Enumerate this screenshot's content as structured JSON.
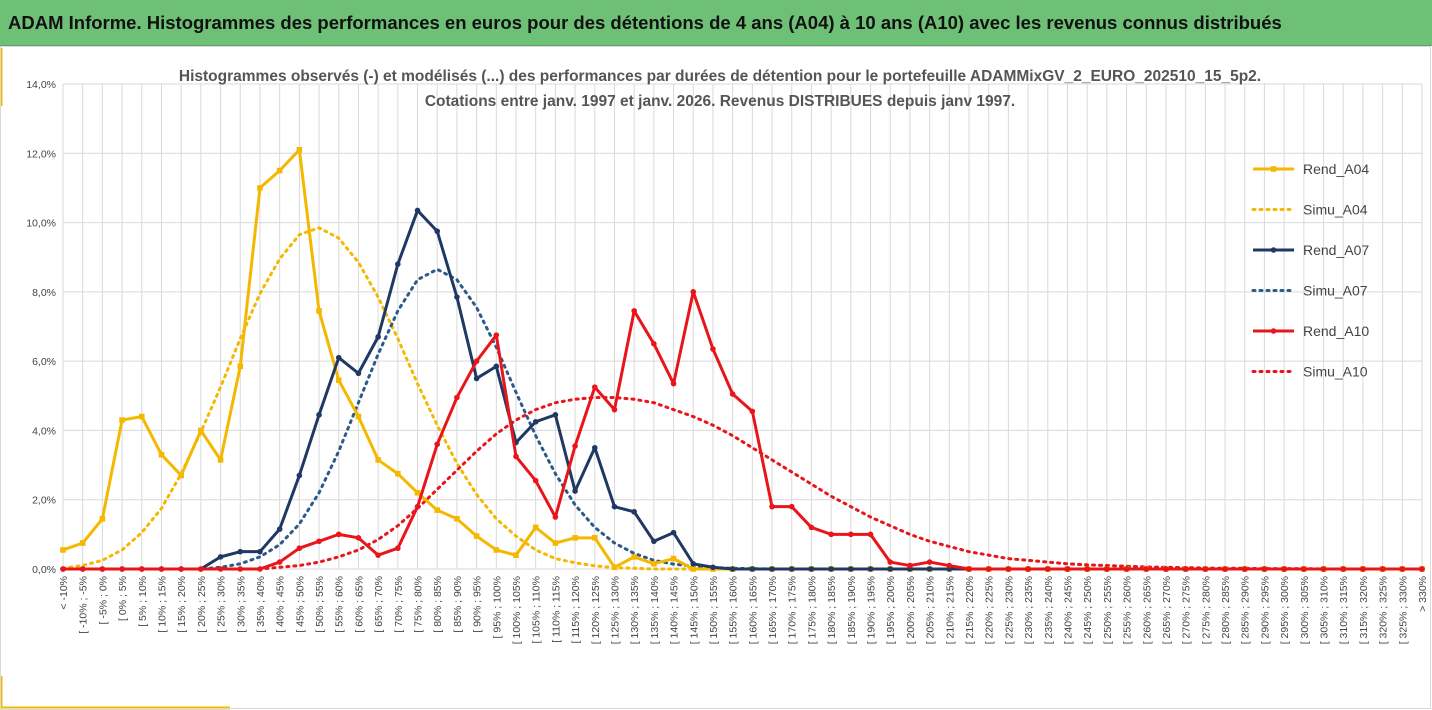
{
  "banner": {
    "title": "ADAM Informe. Histogrammes des performances en euros pour des détentions de 4 ans (A04) à 10 ans (A10) avec les revenus connus distribués"
  },
  "colors": {
    "banner_bg": "#6fc077",
    "a04": "#f5b800",
    "a07": "#1f3864",
    "a07_sim": "#2e5a88",
    "a10": "#e8151a",
    "grid": "#d9d9d9",
    "frame_accent": "#f5b800"
  },
  "chart_data": {
    "type": "line",
    "title": [
      "Histogrammes observés (-) et modélisés (...) des performances par durées de détention pour  le portefeuille ADAMMixGV_2_EURO_202510_15_5p2.",
      "Cotations  entre janv. 1997 et janv. 2026. Revenus DISTRIBUES depuis janv 1997."
    ],
    "ylim": [
      0,
      14
    ],
    "yticks": [
      "0,0%",
      "2,0%",
      "4,0%",
      "6,0%",
      "8,0%",
      "10,0%",
      "12,0%",
      "14,0%"
    ],
    "categories": [
      "< -10%",
      "[ -10% ; -5%",
      "[ -5% ; 0%",
      "[ 0% ; 5%",
      "[ 5% ; 10%",
      "[ 10% ; 15%",
      "[ 15% ; 20%",
      "[ 20% ; 25%",
      "[ 25% ; 30%",
      "[ 30% ; 35%",
      "[ 35% ; 40%",
      "[ 40% ; 45%",
      "[ 45% ; 50%",
      "[ 50% ; 55%",
      "[ 55% ; 60%",
      "[ 60% ; 65%",
      "[ 65% ; 70%",
      "[ 70% ; 75%",
      "[ 75% ; 80%",
      "[ 80% ; 85%",
      "[ 85% ; 90%",
      "[ 90% ; 95%",
      "[ 95% ; 100%",
      "[ 100% ; 105%",
      "[ 105% ; 110%",
      "[ 110% ; 115%",
      "[ 115% ; 120%",
      "[ 120% ; 125%",
      "[ 125% ; 130%",
      "[ 130% ; 135%",
      "[ 135% ; 140%",
      "[ 140% ; 145%",
      "[ 145% ; 150%",
      "[ 150% ; 155%",
      "[ 155% ; 160%",
      "[ 160% ; 165%",
      "[ 165% ; 170%",
      "[ 170% ; 175%",
      "[ 175% ; 180%",
      "[ 180% ; 185%",
      "[ 185% ; 190%",
      "[ 190% ; 195%",
      "[ 195% ; 200%",
      "[ 200% ; 205%",
      "[ 205% ; 210%",
      "[ 210% ; 215%",
      "[ 215% ; 220%",
      "[ 220% ; 225%",
      "[ 225% ; 230%",
      "[ 230% ; 235%",
      "[ 235% ; 240%",
      "[ 240% ; 245%",
      "[ 245% ; 250%",
      "[ 250% ; 255%",
      "[ 255% ; 260%",
      "[ 260% ; 265%",
      "[ 265% ; 270%",
      "[ 270% ; 275%",
      "[ 275% ; 280%",
      "[ 280% ; 285%",
      "[ 285% ; 290%",
      "[ 290% ; 295%",
      "[ 295% ; 300%",
      "[ 300% ; 305%",
      "[ 305% ; 310%",
      "[ 310% ; 315%",
      "[ 315% ; 320%",
      "[ 320% ; 325%",
      "[ 325% ; 330%",
      "> 330%"
    ],
    "series": [
      {
        "name": "Rend_A04",
        "style": "solid",
        "color": "#f5b800",
        "values": [
          0.55,
          0.75,
          1.45,
          4.3,
          4.4,
          3.3,
          2.7,
          4.0,
          3.15,
          5.85,
          11.0,
          11.5,
          12.1,
          7.45,
          5.45,
          4.4,
          3.15,
          2.75,
          2.2,
          1.7,
          1.45,
          0.95,
          0.55,
          0.4,
          1.2,
          0.75,
          0.9,
          0.9,
          0.05,
          0.35,
          0.15,
          0.3,
          0.0,
          0,
          0,
          0,
          0,
          0,
          0,
          0,
          0,
          0,
          0,
          0,
          0,
          0,
          0,
          0,
          0,
          0,
          0,
          0,
          0,
          0,
          0,
          0,
          0,
          0,
          0,
          0,
          0,
          0,
          0,
          0,
          0,
          0,
          0,
          0,
          0,
          0
        ]
      },
      {
        "name": "Simu_A04",
        "style": "dotted",
        "color": "#f5b800",
        "values": [
          0.03,
          0.1,
          0.25,
          0.55,
          1.05,
          1.75,
          2.75,
          3.95,
          5.25,
          6.65,
          7.95,
          8.95,
          9.65,
          9.85,
          9.55,
          8.85,
          7.85,
          6.65,
          5.35,
          4.15,
          3.05,
          2.15,
          1.45,
          0.95,
          0.55,
          0.3,
          0.18,
          0.09,
          0.04,
          0.02,
          0,
          0,
          0,
          0,
          0,
          0,
          0,
          0,
          0,
          0,
          0,
          0,
          0,
          0,
          0,
          0,
          0,
          0,
          0,
          0,
          0,
          0,
          0,
          0,
          0,
          0,
          0,
          0,
          0,
          0,
          0,
          0,
          0,
          0,
          0,
          0,
          0,
          0,
          0,
          0
        ]
      },
      {
        "name": "Rend_A07",
        "style": "solid-marker",
        "color": "#1f3864",
        "values": [
          0,
          0,
          0,
          0,
          0,
          0,
          0,
          0,
          0.35,
          0.5,
          0.5,
          1.15,
          2.7,
          4.45,
          6.1,
          5.65,
          6.7,
          8.8,
          10.35,
          9.75,
          7.85,
          5.5,
          5.85,
          3.65,
          4.25,
          4.45,
          2.25,
          3.5,
          1.8,
          1.65,
          0.8,
          1.05,
          0.15,
          0.05,
          0,
          0,
          0,
          0,
          0,
          0,
          0,
          0,
          0,
          0,
          0,
          0,
          0,
          0,
          0,
          0,
          0,
          0,
          0,
          0,
          0,
          0,
          0,
          0,
          0,
          0,
          0,
          0,
          0,
          0,
          0,
          0,
          0,
          0,
          0,
          0
        ]
      },
      {
        "name": "Simu_A07",
        "style": "dotted",
        "color": "#2e5a88",
        "values": [
          0,
          0,
          0,
          0,
          0,
          0,
          0,
          0,
          0.05,
          0.15,
          0.35,
          0.7,
          1.3,
          2.2,
          3.4,
          4.8,
          6.2,
          7.45,
          8.35,
          8.65,
          8.35,
          7.55,
          6.4,
          5.1,
          3.85,
          2.75,
          1.85,
          1.2,
          0.75,
          0.45,
          0.25,
          0.14,
          0.08,
          0.04,
          0.02,
          0.01,
          0,
          0,
          0,
          0,
          0,
          0,
          0,
          0,
          0,
          0,
          0,
          0,
          0,
          0,
          0,
          0,
          0,
          0,
          0,
          0,
          0,
          0,
          0,
          0,
          0,
          0,
          0,
          0,
          0,
          0,
          0,
          0,
          0,
          0
        ]
      },
      {
        "name": "Rend_A10",
        "style": "solid-marker",
        "color": "#e8151a",
        "values": [
          0,
          0,
          0,
          0,
          0,
          0,
          0,
          0,
          0,
          0,
          0,
          0.2,
          0.6,
          0.8,
          1.0,
          0.9,
          0.4,
          0.6,
          1.8,
          3.6,
          4.95,
          6.0,
          6.75,
          3.25,
          2.55,
          1.5,
          3.55,
          5.25,
          4.6,
          7.45,
          6.5,
          5.35,
          8.0,
          6.35,
          5.05,
          4.55,
          1.8,
          1.8,
          1.2,
          1.0,
          1.0,
          1.0,
          0.2,
          0.1,
          0.2,
          0.1,
          0,
          0,
          0,
          0,
          0,
          0,
          0,
          0,
          0,
          0,
          0,
          0,
          0,
          0,
          0,
          0,
          0,
          0,
          0,
          0,
          0,
          0,
          0,
          0
        ]
      },
      {
        "name": "Simu_A10",
        "style": "dotted",
        "color": "#e8151a",
        "values": [
          0,
          0,
          0,
          0,
          0,
          0,
          0,
          0,
          0,
          0,
          0,
          0.05,
          0.1,
          0.2,
          0.35,
          0.55,
          0.85,
          1.25,
          1.75,
          2.3,
          2.85,
          3.4,
          3.9,
          4.3,
          4.6,
          4.8,
          4.9,
          4.95,
          4.95,
          4.9,
          4.8,
          4.6,
          4.4,
          4.15,
          3.85,
          3.5,
          3.15,
          2.8,
          2.45,
          2.1,
          1.8,
          1.5,
          1.25,
          1.0,
          0.8,
          0.65,
          0.5,
          0.4,
          0.3,
          0.25,
          0.2,
          0.15,
          0.12,
          0.1,
          0.08,
          0.06,
          0.05,
          0.04,
          0.03,
          0.02,
          0.02,
          0.01,
          0.01,
          0.01,
          0,
          0,
          0,
          0,
          0,
          0
        ]
      }
    ],
    "legend_position": "right"
  }
}
